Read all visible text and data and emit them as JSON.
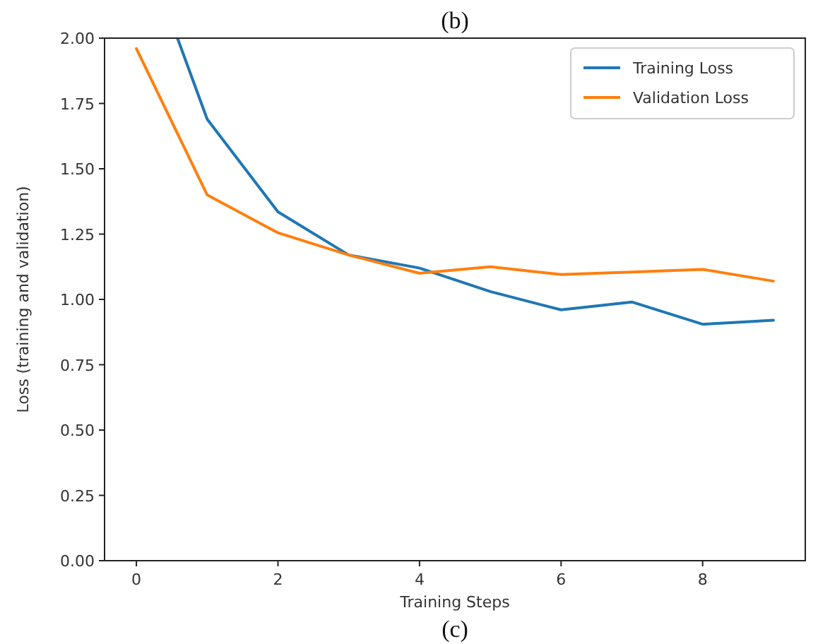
{
  "chart_data": {
    "type": "line",
    "xlabel": "Training Steps",
    "ylabel": "Loss (training and validation)",
    "annotations": [
      "(b)",
      "(c)"
    ],
    "x": [
      0,
      1,
      2,
      3,
      4,
      5,
      6,
      7,
      8,
      9
    ],
    "series": [
      {
        "name": "Training Loss",
        "color": "#1f77b4",
        "x": [
          0.58,
          1,
          2,
          3,
          4,
          5,
          6,
          7,
          8,
          9
        ],
        "values": [
          2.0,
          1.69,
          1.335,
          1.17,
          1.12,
          1.03,
          0.96,
          0.99,
          0.905,
          0.92
        ]
      },
      {
        "name": "Validation Loss",
        "color": "#ff7f0e",
        "values": [
          1.96,
          1.4,
          1.255,
          1.17,
          1.1,
          1.125,
          1.095,
          1.105,
          1.115,
          1.07
        ]
      }
    ],
    "xlim": [
      -0.45,
      9.45
    ],
    "xticks": [
      0,
      2,
      4,
      6,
      8
    ],
    "ylim": [
      0,
      2
    ],
    "yticks": [
      {
        "value": 0,
        "label": "0.00"
      },
      {
        "value": 0.25,
        "label": "0.25"
      },
      {
        "value": 0.5,
        "label": "0.50"
      },
      {
        "value": 0.75,
        "label": "0.75"
      },
      {
        "value": 1,
        "label": "1.00"
      },
      {
        "value": 1.25,
        "label": "1.25"
      },
      {
        "value": 1.5,
        "label": "1.50"
      },
      {
        "value": 1.75,
        "label": "1.75"
      },
      {
        "value": 2,
        "label": "2.00"
      }
    ],
    "grid": false,
    "legend": "top right"
  }
}
